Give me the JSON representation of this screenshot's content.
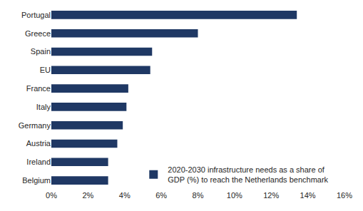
{
  "chart_data": {
    "type": "bar",
    "orientation": "horizontal",
    "categories": [
      "Portugal",
      "Greece",
      "Spain",
      "EU",
      "France",
      "Italy",
      "Germany",
      "Austria",
      "Ireland",
      "Belgium"
    ],
    "series": [
      {
        "name": "2020-2030 infrastructure needs as a share of GDP (%) to reach the Netherlands benchmark",
        "color": "#1f3864",
        "values": [
          13.4,
          8.0,
          5.5,
          5.4,
          4.2,
          4.1,
          3.9,
          3.6,
          3.1,
          3.1
        ]
      }
    ],
    "xlim": [
      0,
      16
    ],
    "xticks": [
      {
        "value": 0,
        "label": "0%"
      },
      {
        "value": 2,
        "label": "2%"
      },
      {
        "value": 4,
        "label": "4%"
      },
      {
        "value": 6,
        "label": "6%"
      },
      {
        "value": 8,
        "label": "8%"
      },
      {
        "value": 10,
        "label": "10%"
      },
      {
        "value": 12,
        "label": "12%"
      },
      {
        "value": 14,
        "label": "14%"
      },
      {
        "value": 16,
        "label": "16%"
      }
    ],
    "grid": false,
    "legend": "lower right"
  }
}
